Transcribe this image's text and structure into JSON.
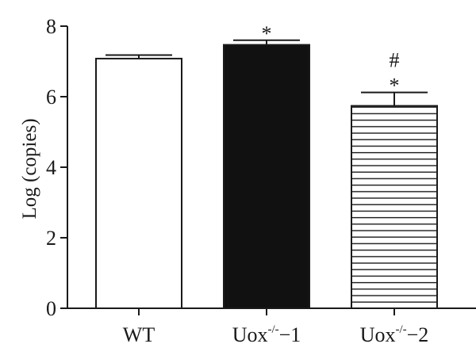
{
  "chart_data": {
    "type": "bar",
    "ylabel": "Log (copies)",
    "xlabel": "",
    "ylim": [
      0,
      8
    ],
    "yticks": [
      "0",
      "2",
      "4",
      "6",
      "8"
    ],
    "categories": [
      {
        "base": "WT",
        "sup": "",
        "suffix": ""
      },
      {
        "base": "Uox",
        "sup": "-/-",
        "suffix": "−1"
      },
      {
        "base": "Uox",
        "sup": "-/-",
        "suffix": "−2"
      }
    ],
    "values": [
      7.08,
      7.47,
      5.74
    ],
    "errors": [
      0.1,
      0.13,
      0.38
    ],
    "fills": [
      "white",
      "black",
      "horizontal-stripes"
    ],
    "annotations": [
      {
        "bar": 1,
        "lines": [
          "*"
        ]
      },
      {
        "bar": 2,
        "lines": [
          "#",
          "*"
        ]
      }
    ],
    "grid": false
  }
}
